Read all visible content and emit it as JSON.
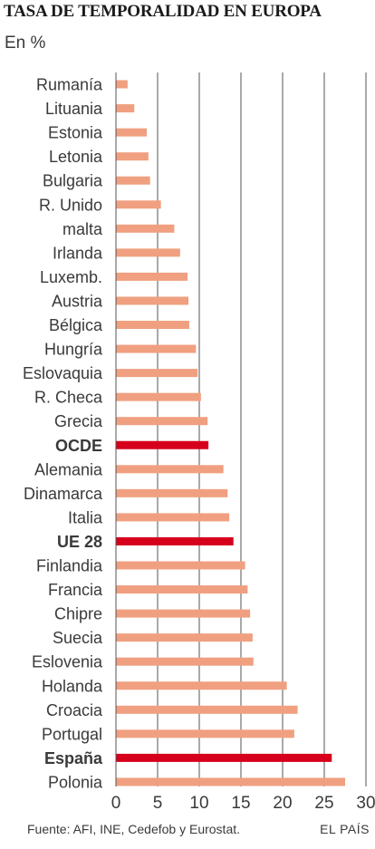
{
  "header": {
    "title": "TASA DE TEMPORALIDAD EN EUROPA",
    "subtitle": "En %"
  },
  "footer": {
    "source": "Fuente: AFI, INE, Cedefob y Eurostat.",
    "brand": "EL PAÍS"
  },
  "colors": {
    "bar": "#f0a080",
    "highlight": "#d6001c",
    "grid": "#555555",
    "text": "#3a3a3a"
  },
  "chart_data": {
    "type": "bar",
    "orientation": "horizontal",
    "grid": true,
    "xlim": [
      0,
      30
    ],
    "xticks": [
      "0",
      "5",
      "10",
      "15",
      "20",
      "25",
      "30"
    ],
    "categories": [
      "Rumanía",
      "Lituania",
      "Estonia",
      "Letonia",
      "Bulgaria",
      "R. Unido",
      "malta",
      "Irlanda",
      "Luxemb.",
      "Austria",
      "Bélgica",
      "Hungría",
      "Eslovaquia",
      "R. Checa",
      "Grecia",
      "OCDE",
      "Alemania",
      "Dinamarca",
      "Italia",
      "UE 28",
      "Finlandia",
      "Francia",
      "Chipre",
      "Suecia",
      "Eslovenia",
      "Holanda",
      "Croacia",
      "Portugal",
      "España",
      "Polonia"
    ],
    "values": [
      1.4,
      2.2,
      3.7,
      3.9,
      4.1,
      5.4,
      7.0,
      7.7,
      8.6,
      8.7,
      8.8,
      9.6,
      9.8,
      10.2,
      11.0,
      11.1,
      12.9,
      13.4,
      13.6,
      14.1,
      15.5,
      15.8,
      16.1,
      16.4,
      16.5,
      20.5,
      21.8,
      21.4,
      25.9,
      27.5
    ],
    "highlighted": [
      "OCDE",
      "UE 28",
      "España"
    ]
  }
}
